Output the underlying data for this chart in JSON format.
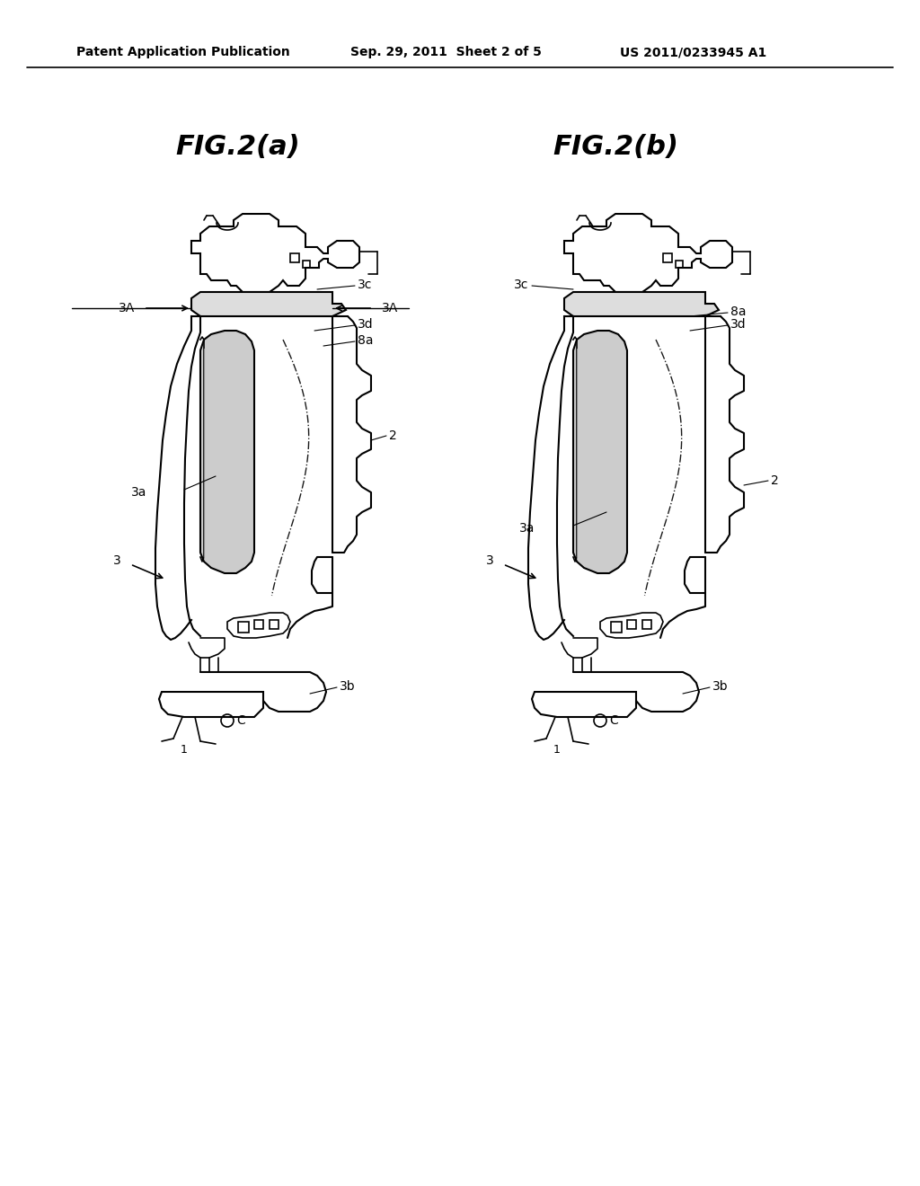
{
  "bg_color": "#ffffff",
  "header_left": "Patent Application Publication",
  "header_mid": "Sep. 29, 2011  Sheet 2 of 5",
  "header_right": "US 2011/0233945 A1",
  "fig_a_title": "FIG.2(a)",
  "fig_b_title": "FIG.2(b)"
}
